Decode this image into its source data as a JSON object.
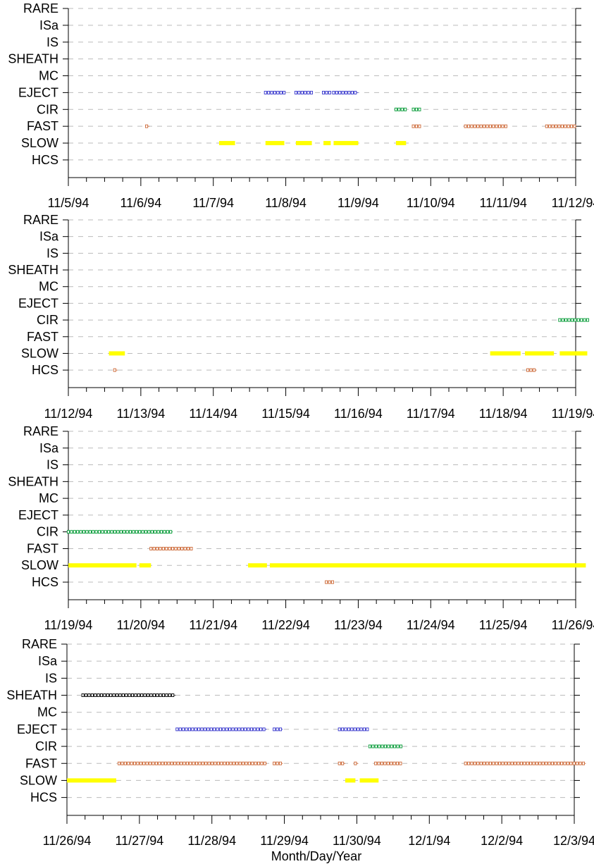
{
  "xlabel": "Month/Day/Year",
  "category_order_top_to_bottom": [
    "RARE",
    "ISa",
    "IS",
    "SHEATH",
    "MC",
    "EJECT",
    "CIR",
    "FAST",
    "SLOW",
    "HCS"
  ],
  "colors": {
    "SLOW": "#ffff00",
    "FAST": "#cc6633",
    "CIR": "#009933",
    "EJECT": "#3333cc",
    "SHEATH": "#000000",
    "HCS": "#cc6633",
    "grid": "#bbbbbb"
  },
  "chart_data": [
    {
      "type": "timeline",
      "x_ticks": [
        "11/5/94",
        "11/6/94",
        "11/7/94",
        "11/8/94",
        "11/9/94",
        "11/10/94",
        "11/11/94",
        "11/12/94"
      ],
      "xlim_days": [
        0,
        7
      ],
      "grid": true,
      "intervals": [
        {
          "category": "SLOW",
          "start": 2.08,
          "end": 2.3
        },
        {
          "category": "SLOW",
          "start": 2.72,
          "end": 2.98
        },
        {
          "category": "SLOW",
          "start": 3.14,
          "end": 3.36
        },
        {
          "category": "SLOW",
          "start": 3.52,
          "end": 3.62
        },
        {
          "category": "SLOW",
          "start": 3.66,
          "end": 4.0
        },
        {
          "category": "SLOW",
          "start": 4.52,
          "end": 4.66
        },
        {
          "category": "FAST",
          "start": 1.08,
          "end": 1.12
        },
        {
          "category": "FAST",
          "start": 4.76,
          "end": 4.86
        },
        {
          "category": "FAST",
          "start": 5.48,
          "end": 6.04
        },
        {
          "category": "FAST",
          "start": 6.6,
          "end": 7.0
        },
        {
          "category": "CIR",
          "start": 4.52,
          "end": 4.66
        },
        {
          "category": "CIR",
          "start": 4.76,
          "end": 4.86
        },
        {
          "category": "EJECT",
          "start": 2.72,
          "end": 2.98
        },
        {
          "category": "EJECT",
          "start": 3.14,
          "end": 3.36
        },
        {
          "category": "EJECT",
          "start": 3.52,
          "end": 3.62
        },
        {
          "category": "EJECT",
          "start": 3.66,
          "end": 4.0
        }
      ]
    },
    {
      "type": "timeline",
      "x_ticks": [
        "11/12/94",
        "11/13/94",
        "11/14/94",
        "11/15/94",
        "11/16/94",
        "11/17/94",
        "11/18/94",
        "11/19/94"
      ],
      "xlim_days": [
        0,
        7
      ],
      "grid": true,
      "intervals": [
        {
          "category": "SLOW",
          "start": 0.56,
          "end": 0.78
        },
        {
          "category": "SLOW",
          "start": 5.82,
          "end": 6.24
        },
        {
          "category": "SLOW",
          "start": 6.3,
          "end": 6.7
        },
        {
          "category": "SLOW",
          "start": 6.78,
          "end": 7.16
        },
        {
          "category": "HCS",
          "start": 0.64,
          "end": 0.68
        },
        {
          "category": "HCS",
          "start": 6.34,
          "end": 6.46
        },
        {
          "category": "CIR",
          "start": 6.78,
          "end": 7.18
        }
      ]
    },
    {
      "type": "timeline",
      "x_ticks": [
        "11/19/94",
        "11/20/94",
        "11/21/94",
        "11/22/94",
        "11/23/94",
        "11/24/94",
        "11/25/94",
        "11/26/94"
      ],
      "xlim_days": [
        0,
        7
      ],
      "grid": true,
      "intervals": [
        {
          "category": "CIR",
          "start": 0.0,
          "end": 1.44
        },
        {
          "category": "FAST",
          "start": 1.14,
          "end": 1.7
        },
        {
          "category": "SLOW",
          "start": 0.0,
          "end": 0.94
        },
        {
          "category": "SLOW",
          "start": 0.98,
          "end": 1.14
        },
        {
          "category": "SLOW",
          "start": 2.48,
          "end": 2.74
        },
        {
          "category": "SLOW",
          "start": 2.78,
          "end": 7.14
        },
        {
          "category": "HCS",
          "start": 3.56,
          "end": 3.66
        }
      ]
    },
    {
      "type": "timeline",
      "x_ticks": [
        "11/26/94",
        "11/27/94",
        "11/28/94",
        "11/29/94",
        "11/30/94",
        "12/1/94",
        "12/2/94",
        "12/3/94"
      ],
      "xlim_days": [
        0,
        7
      ],
      "grid": true,
      "intervals": [
        {
          "category": "SHEATH",
          "start": 0.22,
          "end": 1.5
        },
        {
          "category": "EJECT",
          "start": 1.52,
          "end": 2.76
        },
        {
          "category": "EJECT",
          "start": 2.86,
          "end": 2.98
        },
        {
          "category": "EJECT",
          "start": 3.76,
          "end": 4.16
        },
        {
          "category": "CIR",
          "start": 4.18,
          "end": 4.62
        },
        {
          "category": "FAST",
          "start": 0.72,
          "end": 2.76
        },
        {
          "category": "FAST",
          "start": 2.86,
          "end": 2.98
        },
        {
          "category": "FAST",
          "start": 3.76,
          "end": 3.84
        },
        {
          "category": "FAST",
          "start": 3.98,
          "end": 4.02
        },
        {
          "category": "FAST",
          "start": 4.26,
          "end": 4.62
        },
        {
          "category": "FAST",
          "start": 5.5,
          "end": 7.16
        },
        {
          "category": "SLOW",
          "start": 0.0,
          "end": 0.68
        },
        {
          "category": "SLOW",
          "start": 3.84,
          "end": 3.98
        },
        {
          "category": "SLOW",
          "start": 4.04,
          "end": 4.3
        }
      ]
    }
  ]
}
